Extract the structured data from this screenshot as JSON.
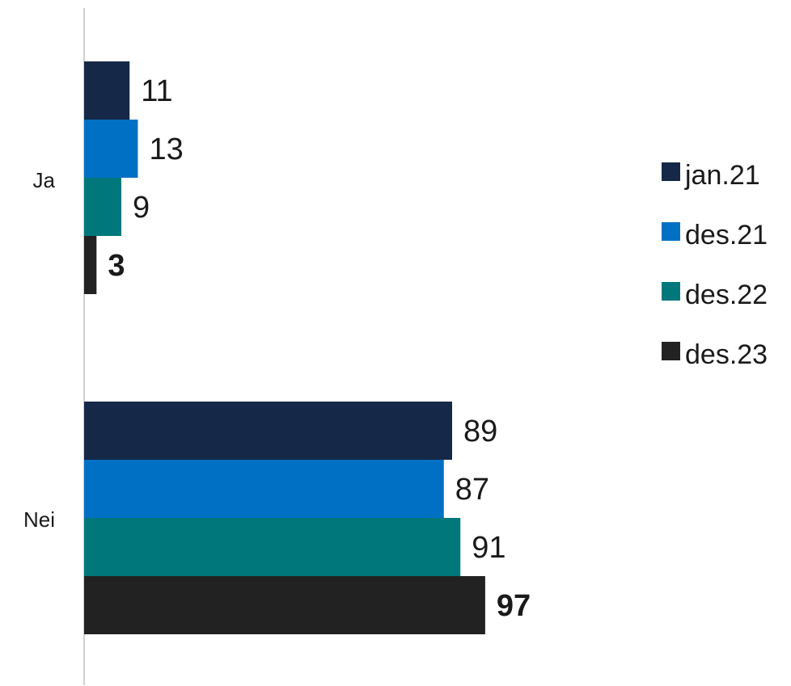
{
  "chart_data": {
    "type": "bar",
    "orientation": "horizontal",
    "categories": [
      "Ja",
      "Nei"
    ],
    "series": [
      {
        "name": "jan.21",
        "values": [
          11,
          89
        ],
        "color": "#162847"
      },
      {
        "name": "des.21",
        "values": [
          13,
          87
        ],
        "color": "#0070c4"
      },
      {
        "name": "des.22",
        "values": [
          9,
          91
        ],
        "color": "#00787b"
      },
      {
        "name": "des.23",
        "values": [
          3,
          97
        ],
        "color": "#222222",
        "bold_labels": true
      }
    ],
    "xlim": [
      0,
      100
    ],
    "grid": false,
    "legend_position": "right"
  }
}
